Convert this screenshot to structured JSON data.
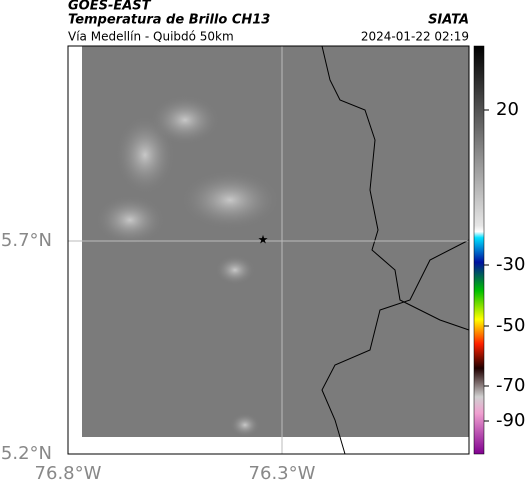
{
  "header": {
    "title": "GOES-EAST",
    "subtitle": "Temperatura de Brillo CH13",
    "region": "Vía Medellín - Quibdó 50km",
    "source": "SIATA",
    "timestamp": "2024-01-22 02:19"
  },
  "map": {
    "lat_ticks": [
      "5.7°N",
      "5.2°N"
    ],
    "lon_ticks": [
      "76.8°W",
      "76.3°W"
    ]
  },
  "colorbar": {
    "ticks": [
      "20",
      "-30",
      "-50",
      "-70",
      "-90"
    ]
  }
}
